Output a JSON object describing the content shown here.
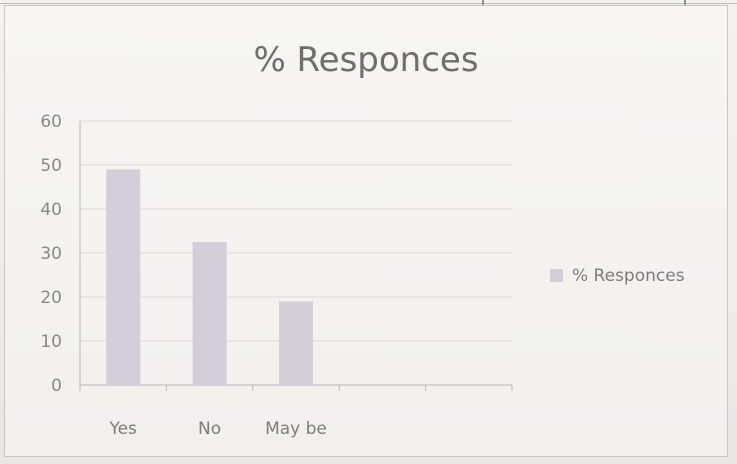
{
  "chart_data": {
    "type": "bar",
    "title": "% Responces",
    "categories": [
      "Yes",
      "No",
      "May be"
    ],
    "series": [
      {
        "name": "% Responces",
        "values": [
          49,
          32.5,
          19
        ]
      }
    ],
    "ylim": [
      0,
      60
    ],
    "yticks": [
      "0",
      "10",
      "20",
      "30",
      "40",
      "50",
      "60"
    ],
    "grid": true,
    "legend_position": "right",
    "colors": {
      "bar": "#d2cfd8",
      "grid": "#dcdbd8",
      "axis": "#b9b8b5"
    }
  }
}
